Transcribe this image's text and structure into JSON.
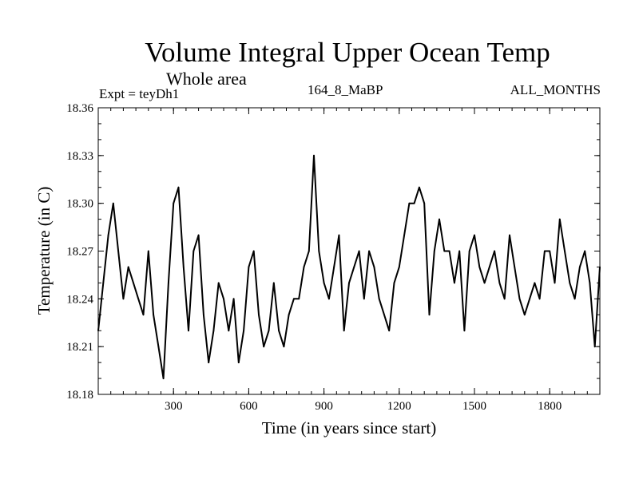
{
  "header": {
    "title": "Volume Integral Upper Ocean Temp",
    "subtitle": "Whole area",
    "experiment": "Expt = teyDh1",
    "run": "164_8_MaBP",
    "months": "ALL_MONTHS"
  },
  "chart_data": {
    "type": "line",
    "title": "Volume Integral Upper Ocean Temp",
    "subtitle": "Whole area",
    "xlabel": "Time (in years since start)",
    "ylabel": "Temperature (in C)",
    "xlim": [
      0,
      2000
    ],
    "ylim": [
      18.18,
      18.36
    ],
    "x_ticks": [
      "300",
      "600",
      "900",
      "1200",
      "1500",
      "1800"
    ],
    "y_ticks": [
      "18.18",
      "18.21",
      "18.24",
      "18.27",
      "18.30",
      "18.33",
      "18.36"
    ],
    "grid": false,
    "series": [
      {
        "name": "Volume Integral Upper Ocean Temp",
        "x": [
          0,
          20,
          40,
          60,
          80,
          100,
          120,
          140,
          160,
          180,
          200,
          220,
          240,
          260,
          280,
          300,
          320,
          340,
          360,
          380,
          400,
          420,
          440,
          460,
          480,
          500,
          520,
          540,
          560,
          580,
          600,
          620,
          640,
          660,
          680,
          700,
          720,
          740,
          760,
          780,
          800,
          820,
          840,
          860,
          880,
          900,
          920,
          940,
          960,
          980,
          1000,
          1020,
          1040,
          1060,
          1080,
          1100,
          1120,
          1140,
          1160,
          1180,
          1200,
          1220,
          1240,
          1260,
          1280,
          1300,
          1320,
          1340,
          1360,
          1380,
          1400,
          1420,
          1440,
          1460,
          1480,
          1500,
          1520,
          1540,
          1560,
          1580,
          1600,
          1620,
          1640,
          1660,
          1680,
          1700,
          1720,
          1740,
          1760,
          1780,
          1800,
          1820,
          1840,
          1860,
          1880,
          1900,
          1920,
          1940,
          1960,
          1980,
          2000
        ],
        "values": [
          18.22,
          18.25,
          18.28,
          18.3,
          18.27,
          18.24,
          18.26,
          18.25,
          18.24,
          18.23,
          18.27,
          18.23,
          18.21,
          18.19,
          18.25,
          18.3,
          18.31,
          18.26,
          18.22,
          18.27,
          18.28,
          18.23,
          18.2,
          18.22,
          18.25,
          18.24,
          18.22,
          18.24,
          18.2,
          18.22,
          18.26,
          18.27,
          18.23,
          18.21,
          18.22,
          18.25,
          18.22,
          18.21,
          18.23,
          18.24,
          18.24,
          18.26,
          18.27,
          18.33,
          18.27,
          18.25,
          18.24,
          18.26,
          18.28,
          18.22,
          18.25,
          18.26,
          18.27,
          18.24,
          18.27,
          18.26,
          18.24,
          18.23,
          18.22,
          18.25,
          18.26,
          18.28,
          18.3,
          18.3,
          18.31,
          18.3,
          18.23,
          18.27,
          18.29,
          18.27,
          18.27,
          18.25,
          18.27,
          18.22,
          18.27,
          18.28,
          18.26,
          18.25,
          18.26,
          18.27,
          18.25,
          18.24,
          18.28,
          18.26,
          18.24,
          18.23,
          18.24,
          18.25,
          18.24,
          18.27,
          18.27,
          18.25,
          18.29,
          18.27,
          18.25,
          18.24,
          18.26,
          18.27,
          18.25,
          18.21,
          18.26
        ]
      }
    ]
  }
}
